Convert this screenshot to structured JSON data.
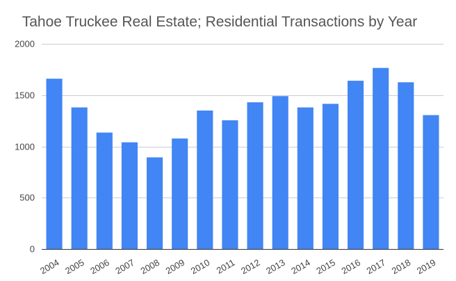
{
  "chart_data": {
    "type": "bar",
    "title": "Tahoe Truckee Real Estate; Residential Transactions by Year",
    "xlabel": "",
    "ylabel": "",
    "categories": [
      "2004",
      "2005",
      "2006",
      "2007",
      "2008",
      "2009",
      "2010",
      "2011",
      "2012",
      "2013",
      "2014",
      "2015",
      "2016",
      "2017",
      "2018",
      "2019"
    ],
    "series": [
      {
        "values": [
          1660,
          1380,
          1135,
          1040,
          893,
          1077,
          1350,
          1255,
          1430,
          1490,
          1380,
          1415,
          1640,
          1765,
          1625,
          1305
        ],
        "color": "#4285f4"
      }
    ],
    "ylim": [
      0,
      2000
    ],
    "yticks": [
      0,
      500,
      1000,
      1500,
      2000
    ],
    "grid": true,
    "legend": "none"
  }
}
